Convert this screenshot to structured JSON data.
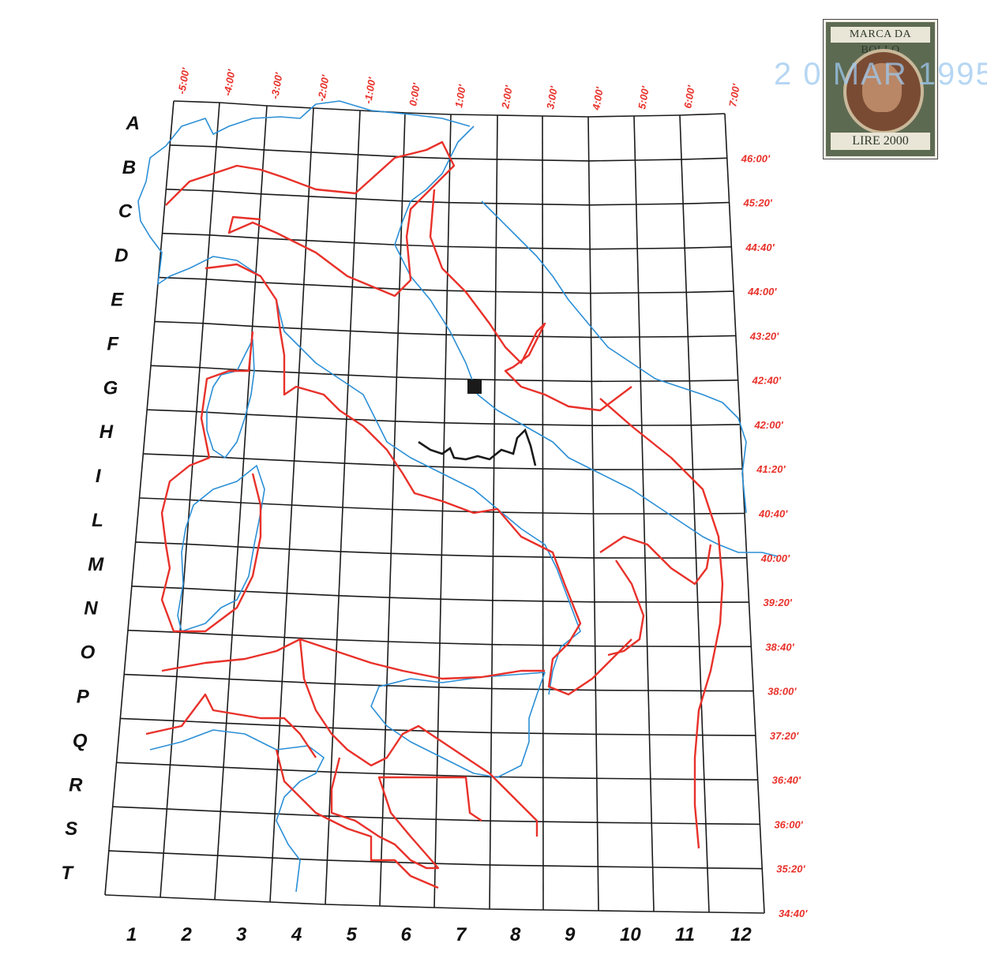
{
  "map": {
    "row_labels": [
      "A",
      "B",
      "C",
      "D",
      "E",
      "F",
      "G",
      "H",
      "I",
      "L",
      "M",
      "N",
      "O",
      "P",
      "Q",
      "R",
      "S",
      "T"
    ],
    "column_labels": [
      "1",
      "2",
      "3",
      "4",
      "5",
      "6",
      "7",
      "8",
      "9",
      "10",
      "11",
      "12"
    ],
    "longitude_labels": [
      "-5:00'",
      "-4:00'",
      "-3:00'",
      "-2:00'",
      "-1:00'",
      "0:00'",
      "1:00'",
      "2:00'",
      "3:00'",
      "4:00'",
      "5:00'",
      "6:00'",
      "7:00'"
    ],
    "latitude_labels": [
      "46:00'",
      "45:20'",
      "44:40'",
      "44:00'",
      "43:20'",
      "42:40'",
      "42:00'",
      "41:20'",
      "40:40'",
      "40:00'",
      "39:20'",
      "38:40'",
      "38:00'",
      "37:20'",
      "36:40'",
      "36:00'",
      "35:20'",
      "34:40'"
    ],
    "colors": {
      "grid": "#1a1a1a",
      "coastline": "#2b8fd6",
      "boundary": "#e8312a",
      "labels": "#e8312a"
    }
  },
  "stamp": {
    "top_text": "MARCA DA BOLLO",
    "value_text": "LIRE 2000"
  },
  "postmark": {
    "text": "2 0 MAR 1995"
  }
}
